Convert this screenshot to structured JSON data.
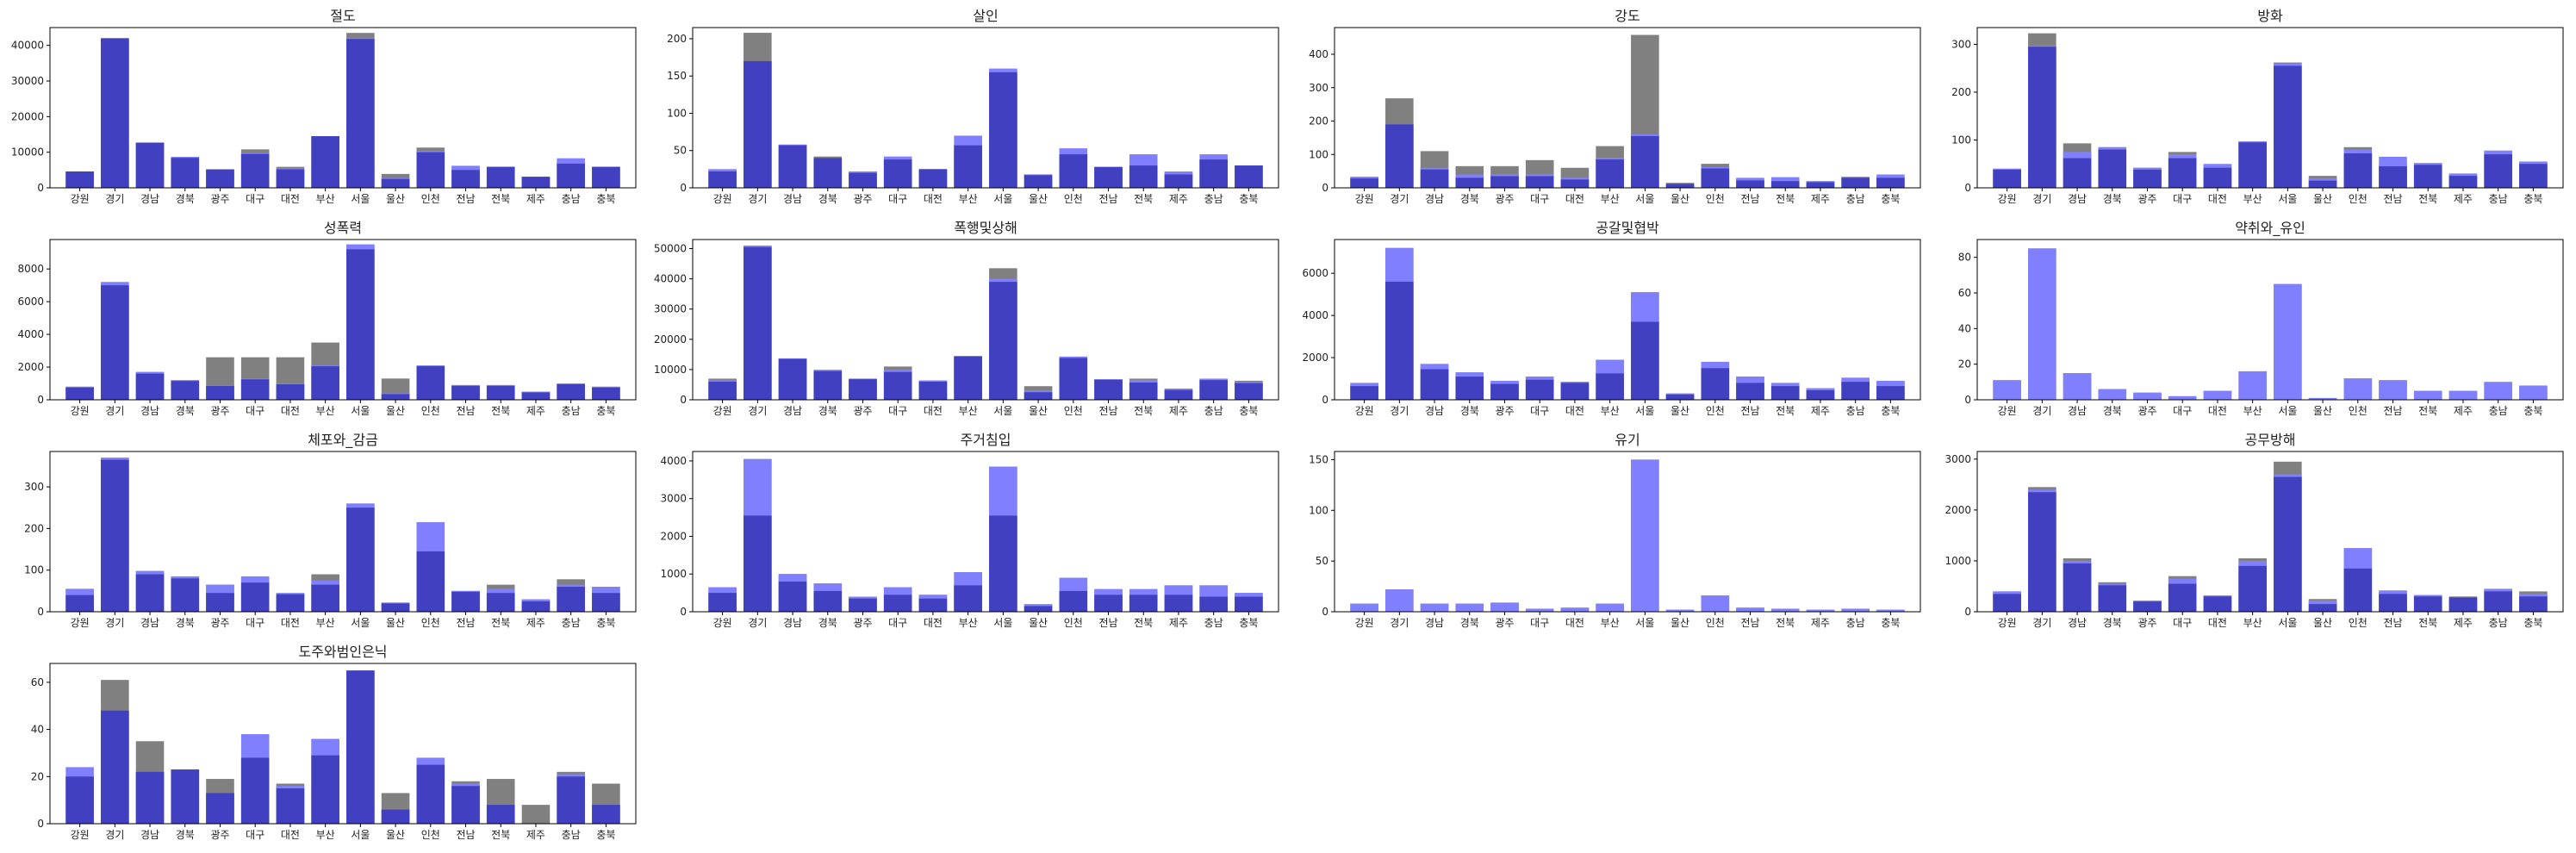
{
  "colors": {
    "gray": "#808080",
    "light_blue": "#8080FF",
    "dark_blue": "#4040C0"
  },
  "chart_data": [
    {
      "type": "bar",
      "title": "절도",
      "categories": [
        "강원",
        "경기",
        "경남",
        "경북",
        "광주",
        "대구",
        "대전",
        "부산",
        "서울",
        "울산",
        "인천",
        "전남",
        "전북",
        "제주",
        "충남",
        "충북"
      ],
      "series": [
        {
          "values": [
            4600,
            42000,
            12700,
            8700,
            5200,
            10800,
            5900,
            14500,
            43500,
            3900,
            11300,
            6000,
            5900,
            3100,
            7500,
            5900
          ]
        },
        {
          "values": [
            4600,
            42000,
            12700,
            8700,
            5200,
            9800,
            5500,
            14500,
            42000,
            2800,
            10400,
            6200,
            5900,
            3100,
            8300,
            5900
          ]
        },
        {
          "values": [
            4600,
            42000,
            12700,
            8400,
            5200,
            9500,
            5200,
            14500,
            41800,
            2500,
            10000,
            5000,
            5900,
            3100,
            6800,
            5900
          ]
        }
      ],
      "ylim": [
        0,
        45000
      ],
      "yticks": [
        0,
        10000,
        20000,
        30000,
        40000
      ]
    },
    {
      "type": "bar",
      "title": "살인",
      "categories": [
        "강원",
        "경기",
        "경남",
        "경북",
        "광주",
        "대구",
        "대전",
        "부산",
        "서울",
        "울산",
        "인천",
        "전남",
        "전북",
        "제주",
        "충남",
        "충북"
      ],
      "series": [
        {
          "values": [
            25,
            208,
            58,
            42,
            22,
            40,
            25,
            58,
            158,
            18,
            45,
            28,
            30,
            20,
            38,
            30
          ]
        },
        {
          "values": [
            25,
            170,
            58,
            40,
            22,
            42,
            25,
            70,
            160,
            18,
            53,
            28,
            45,
            22,
            45,
            30
          ]
        },
        {
          "values": [
            22,
            170,
            57,
            40,
            20,
            38,
            25,
            57,
            155,
            17,
            45,
            28,
            30,
            18,
            38,
            30
          ]
        }
      ],
      "ylim": [
        0,
        215
      ],
      "yticks": [
        0,
        50,
        100,
        150,
        200
      ]
    },
    {
      "type": "bar",
      "title": "강도",
      "categories": [
        "강원",
        "경기",
        "경남",
        "경북",
        "광주",
        "대구",
        "대전",
        "부산",
        "서울",
        "울산",
        "인천",
        "전남",
        "전북",
        "제주",
        "충남",
        "충북"
      ],
      "series": [
        {
          "values": [
            33,
            268,
            110,
            65,
            65,
            83,
            60,
            125,
            458,
            15,
            72,
            27,
            25,
            20,
            33,
            33
          ]
        },
        {
          "values": [
            33,
            190,
            60,
            40,
            40,
            40,
            30,
            90,
            160,
            13,
            62,
            30,
            32,
            20,
            30,
            40
          ]
        },
        {
          "values": [
            28,
            190,
            55,
            30,
            35,
            35,
            25,
            85,
            155,
            12,
            58,
            22,
            20,
            17,
            30,
            30
          ]
        }
      ],
      "ylim": [
        0,
        480
      ],
      "yticks": [
        0,
        100,
        200,
        300,
        400
      ]
    },
    {
      "type": "bar",
      "title": "방화",
      "categories": [
        "강원",
        "경기",
        "경남",
        "경북",
        "광주",
        "대구",
        "대전",
        "부산",
        "서울",
        "울산",
        "인천",
        "전남",
        "전북",
        "제주",
        "충남",
        "충북"
      ],
      "series": [
        {
          "values": [
            40,
            323,
            93,
            85,
            42,
            75,
            48,
            97,
            262,
            25,
            85,
            50,
            50,
            28,
            75,
            55
          ]
        },
        {
          "values": [
            40,
            297,
            75,
            85,
            42,
            70,
            50,
            97,
            260,
            20,
            80,
            65,
            52,
            30,
            78,
            55
          ]
        },
        {
          "values": [
            38,
            295,
            62,
            80,
            38,
            62,
            42,
            95,
            255,
            15,
            72,
            45,
            48,
            25,
            70,
            50
          ]
        }
      ],
      "ylim": [
        0,
        335
      ],
      "yticks": [
        0,
        100,
        200,
        300
      ]
    },
    {
      "type": "bar",
      "title": "성폭력",
      "categories": [
        "강원",
        "경기",
        "경남",
        "경북",
        "광주",
        "대구",
        "대전",
        "부산",
        "서울",
        "울산",
        "인천",
        "전남",
        "전북",
        "제주",
        "충남",
        "충북"
      ],
      "series": [
        {
          "values": [
            800,
            7200,
            1700,
            1200,
            2600,
            2600,
            2600,
            3500,
            9500,
            1300,
            2100,
            900,
            900,
            500,
            1000,
            800
          ]
        },
        {
          "values": [
            800,
            7200,
            1700,
            1200,
            900,
            1300,
            1000,
            2100,
            9500,
            400,
            2100,
            900,
            900,
            500,
            1000,
            800
          ]
        },
        {
          "values": [
            750,
            7000,
            1600,
            1150,
            850,
            1250,
            950,
            2050,
            9200,
            350,
            2050,
            850,
            850,
            450,
            950,
            750
          ]
        }
      ],
      "ylim": [
        0,
        9800
      ],
      "yticks": [
        0,
        2000,
        4000,
        6000,
        8000
      ]
    },
    {
      "type": "bar",
      "title": "폭행및상해",
      "categories": [
        "강원",
        "경기",
        "경남",
        "경북",
        "광주",
        "대구",
        "대전",
        "부산",
        "서울",
        "울산",
        "인천",
        "전남",
        "전북",
        "제주",
        "충남",
        "충북"
      ],
      "series": [
        {
          "values": [
            7000,
            51000,
            13700,
            9900,
            7000,
            11000,
            6400,
            14500,
            43500,
            4500,
            14000,
            6800,
            7000,
            3700,
            6800,
            6300
          ]
        },
        {
          "values": [
            6500,
            51000,
            13700,
            9900,
            7000,
            10000,
            6300,
            14500,
            40000,
            3100,
            14300,
            6800,
            6500,
            3500,
            7000,
            6000
          ]
        },
        {
          "values": [
            6000,
            50500,
            13500,
            9500,
            6800,
            9200,
            6000,
            14300,
            39000,
            2500,
            13800,
            6600,
            5700,
            3200,
            6500,
            5500
          ]
        }
      ],
      "ylim": [
        0,
        53000
      ],
      "yticks": [
        0,
        10000,
        20000,
        30000,
        40000,
        50000
      ]
    },
    {
      "type": "bar",
      "title": "공갈및협박",
      "categories": [
        "강원",
        "경기",
        "경남",
        "경북",
        "광주",
        "대구",
        "대전",
        "부산",
        "서울",
        "울산",
        "인천",
        "전남",
        "전북",
        "제주",
        "충남",
        "충북"
      ],
      "series": [
        {
          "values": [
            800,
            7200,
            1700,
            1300,
            900,
            1100,
            850,
            1900,
            5100,
            300,
            1800,
            1100,
            800,
            550,
            1000,
            900
          ]
        },
        {
          "values": [
            800,
            7200,
            1700,
            1300,
            900,
            1100,
            850,
            1900,
            5100,
            300,
            1800,
            1100,
            800,
            550,
            1050,
            900
          ]
        },
        {
          "values": [
            650,
            5600,
            1450,
            1100,
            750,
            950,
            800,
            1250,
            3700,
            250,
            1500,
            800,
            650,
            450,
            850,
            650
          ]
        }
      ],
      "ylim": [
        0,
        7600
      ],
      "yticks": [
        0,
        2000,
        4000,
        6000
      ]
    },
    {
      "type": "bar",
      "title": "약취와_유인",
      "categories": [
        "강원",
        "경기",
        "경남",
        "경북",
        "광주",
        "대구",
        "대전",
        "부산",
        "서울",
        "울산",
        "인천",
        "전남",
        "전북",
        "제주",
        "충남",
        "충북"
      ],
      "series": [
        {
          "values": [
            11,
            85,
            15,
            6,
            4,
            2,
            5,
            16,
            65,
            1,
            12,
            11,
            5,
            5,
            10,
            8
          ]
        },
        {
          "values": [
            11,
            85,
            15,
            6,
            4,
            2,
            5,
            16,
            65,
            1,
            12,
            11,
            5,
            5,
            10,
            8
          ]
        },
        {
          "values": [
            0,
            0,
            0,
            0,
            0,
            0,
            0,
            0,
            0,
            0,
            0,
            0,
            0,
            0,
            0,
            0
          ]
        }
      ],
      "ylim": [
        0,
        90
      ],
      "yticks": [
        0,
        20,
        40,
        60,
        80
      ]
    },
    {
      "type": "bar",
      "title": "체포와_감금",
      "categories": [
        "강원",
        "경기",
        "경남",
        "경북",
        "광주",
        "대구",
        "대전",
        "부산",
        "서울",
        "울산",
        "인천",
        "전남",
        "전북",
        "제주",
        "충남",
        "충북"
      ],
      "series": [
        {
          "values": [
            55,
            370,
            98,
            85,
            65,
            85,
            45,
            90,
            260,
            22,
            215,
            50,
            65,
            30,
            78,
            60
          ]
        },
        {
          "values": [
            55,
            370,
            98,
            85,
            65,
            85,
            45,
            75,
            260,
            22,
            215,
            50,
            55,
            30,
            65,
            60
          ]
        },
        {
          "values": [
            40,
            365,
            90,
            80,
            45,
            70,
            42,
            65,
            250,
            20,
            145,
            48,
            45,
            25,
            60,
            45
          ]
        }
      ],
      "ylim": [
        0,
        385
      ],
      "yticks": [
        0,
        100,
        200,
        300
      ]
    },
    {
      "type": "bar",
      "title": "주거침입",
      "categories": [
        "강원",
        "경기",
        "경남",
        "경북",
        "광주",
        "대구",
        "대전",
        "부산",
        "서울",
        "울산",
        "인천",
        "전남",
        "전북",
        "제주",
        "충남",
        "충북"
      ],
      "series": [
        {
          "values": [
            650,
            4050,
            1000,
            750,
            400,
            650,
            450,
            1050,
            3850,
            200,
            900,
            600,
            600,
            700,
            700,
            500
          ]
        },
        {
          "values": [
            650,
            4050,
            1000,
            750,
            400,
            650,
            450,
            1050,
            3850,
            200,
            900,
            600,
            600,
            700,
            700,
            500
          ]
        },
        {
          "values": [
            500,
            2550,
            800,
            550,
            350,
            450,
            350,
            700,
            2550,
            150,
            550,
            450,
            450,
            450,
            400,
            400
          ]
        }
      ],
      "ylim": [
        0,
        4250
      ],
      "yticks": [
        0,
        1000,
        2000,
        3000,
        4000
      ]
    },
    {
      "type": "bar",
      "title": "유기",
      "categories": [
        "강원",
        "경기",
        "경남",
        "경북",
        "광주",
        "대구",
        "대전",
        "부산",
        "서울",
        "울산",
        "인천",
        "전남",
        "전북",
        "제주",
        "충남",
        "충북"
      ],
      "series": [
        {
          "values": [
            8,
            22,
            8,
            8,
            9,
            3,
            4,
            8,
            150,
            2,
            16,
            4,
            3,
            2,
            3,
            2
          ]
        },
        {
          "values": [
            8,
            22,
            8,
            8,
            9,
            3,
            4,
            8,
            150,
            2,
            16,
            4,
            3,
            2,
            3,
            2
          ]
        },
        {
          "values": [
            0,
            0,
            0,
            0,
            0,
            0,
            0,
            0,
            0,
            0,
            0,
            0,
            0,
            0,
            0,
            0
          ]
        }
      ],
      "ylim": [
        0,
        158
      ],
      "yticks": [
        0,
        50,
        100,
        150
      ]
    },
    {
      "type": "bar",
      "title": "공무방해",
      "categories": [
        "강원",
        "경기",
        "경남",
        "경북",
        "광주",
        "대구",
        "대전",
        "부산",
        "서울",
        "울산",
        "인천",
        "전남",
        "전북",
        "제주",
        "충남",
        "충북"
      ],
      "series": [
        {
          "values": [
            400,
            2450,
            1050,
            580,
            220,
            700,
            320,
            1050,
            2950,
            250,
            1250,
            400,
            330,
            300,
            450,
            400
          ]
        },
        {
          "values": [
            400,
            2400,
            1000,
            550,
            220,
            650,
            320,
            1000,
            2700,
            220,
            1250,
            420,
            330,
            280,
            450,
            350
          ]
        },
        {
          "values": [
            350,
            2350,
            950,
            520,
            200,
            550,
            300,
            900,
            2650,
            150,
            850,
            350,
            300,
            280,
            400,
            300
          ]
        }
      ],
      "ylim": [
        0,
        3150
      ],
      "yticks": [
        0,
        1000,
        2000,
        3000
      ]
    },
    {
      "type": "bar",
      "title": "도주와범인은닉",
      "categories": [
        "강원",
        "경기",
        "경남",
        "경북",
        "광주",
        "대구",
        "대전",
        "부산",
        "서울",
        "울산",
        "인천",
        "전남",
        "전북",
        "제주",
        "충남",
        "충북"
      ],
      "series": [
        {
          "values": [
            20,
            61,
            35,
            23,
            19,
            28,
            17,
            36,
            65,
            13,
            27,
            18,
            19,
            8,
            22,
            17
          ]
        },
        {
          "values": [
            24,
            48,
            22,
            23,
            13,
            38,
            16,
            36,
            65,
            6,
            28,
            17,
            8,
            0,
            21,
            8
          ]
        },
        {
          "values": [
            20,
            48,
            22,
            23,
            13,
            28,
            15,
            29,
            65,
            6,
            25,
            16,
            8,
            0,
            20,
            8
          ]
        }
      ],
      "ylim": [
        0,
        68
      ],
      "yticks": [
        0,
        20,
        40,
        60
      ]
    }
  ]
}
